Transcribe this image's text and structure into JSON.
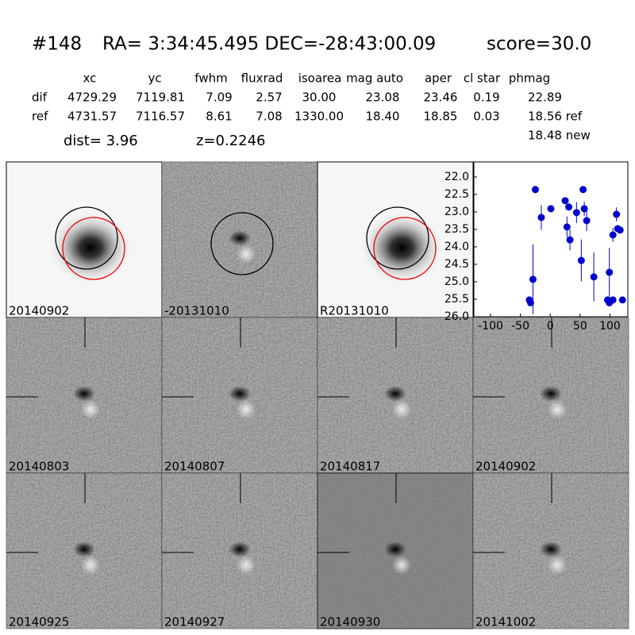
{
  "header": {
    "id": "#148",
    "coords": "RA= 3:34:45.495 DEC=-28:43:00.09",
    "score": "score=30.0"
  },
  "table": {
    "columns": [
      "xc",
      "yc",
      "fwhm",
      "fluxrad",
      "isoarea",
      "mag auto",
      "aper",
      "cl star",
      "phmag"
    ],
    "rows": [
      [
        "dif",
        "4729.29",
        "7119.81",
        "7.09",
        "2.57",
        "30.00",
        "23.08",
        "23.46",
        "0.19",
        "22.89"
      ],
      [
        "ref",
        "4731.57",
        "7116.57",
        "8.61",
        "7.08",
        "1330.00",
        "18.40",
        "18.85",
        "0.03",
        "18.56 ref"
      ]
    ],
    "extra": "18.48 new"
  },
  "info": {
    "dist": "dist=  3.96",
    "z": "z=0.2246"
  },
  "stamps": [
    {
      "label": "20140902",
      "color": "#000000"
    },
    {
      "label": "-20131010",
      "color": "#000000"
    },
    {
      "label": "R20131010",
      "color": "#000000"
    },
    {
      "label": "20140803",
      "color": "#000000"
    },
    {
      "label": "20140807",
      "color": "#000000"
    },
    {
      "label": "20140817",
      "color": "#000000"
    },
    {
      "label": "20140902",
      "color": "#ff0000"
    },
    {
      "label": "20140925",
      "color": "#000000"
    },
    {
      "label": "20140927",
      "color": "#000000"
    },
    {
      "label": "20140930",
      "color": "#000000"
    },
    {
      "label": "20141002",
      "color": "#000000"
    }
  ],
  "chart_data": {
    "type": "scatter",
    "color": "#0000cc",
    "x": [
      -35,
      -33,
      -29,
      -25,
      -15,
      1,
      25,
      28,
      31,
      33,
      44,
      52,
      55,
      57,
      61,
      73,
      96,
      99,
      99,
      105,
      105,
      111,
      113,
      117,
      121
    ],
    "values": [
      25.52,
      25.6,
      24.93,
      22.36,
      23.16,
      22.91,
      22.68,
      23.43,
      22.86,
      23.8,
      23.02,
      24.39,
      22.36,
      22.91,
      23.25,
      24.86,
      25.52,
      24.73,
      25.6,
      25.52,
      23.66,
      23.07,
      23.48,
      23.52,
      25.52
    ],
    "errors": [
      0.05,
      0.05,
      1.0,
      0.1,
      0.35,
      0.1,
      0.1,
      0.3,
      0.1,
      0.3,
      0.3,
      0.6,
      0.05,
      0.2,
      0.3,
      0.7,
      0.05,
      0.7,
      0.05,
      0.05,
      0.2,
      0.2,
      0.1,
      0.1,
      0.05
    ],
    "xlim": [
      -128,
      130
    ],
    "ylim": [
      26.0,
      21.57
    ],
    "xticks": [
      -100,
      -50,
      0,
      50,
      100
    ],
    "yticks": [
      {
        "value": 22,
        "label": "22.0"
      },
      {
        "value": 22.5,
        "label": "22.5"
      },
      {
        "value": 23,
        "label": "23.0"
      },
      {
        "value": 23.5,
        "label": "23.5"
      },
      {
        "value": 24,
        "label": "24.0"
      },
      {
        "value": 24.5,
        "label": "24.5"
      },
      {
        "value": 25,
        "label": "25.0"
      },
      {
        "value": 25.5,
        "label": "25.5"
      },
      {
        "value": 26,
        "label": "26.0"
      }
    ]
  }
}
